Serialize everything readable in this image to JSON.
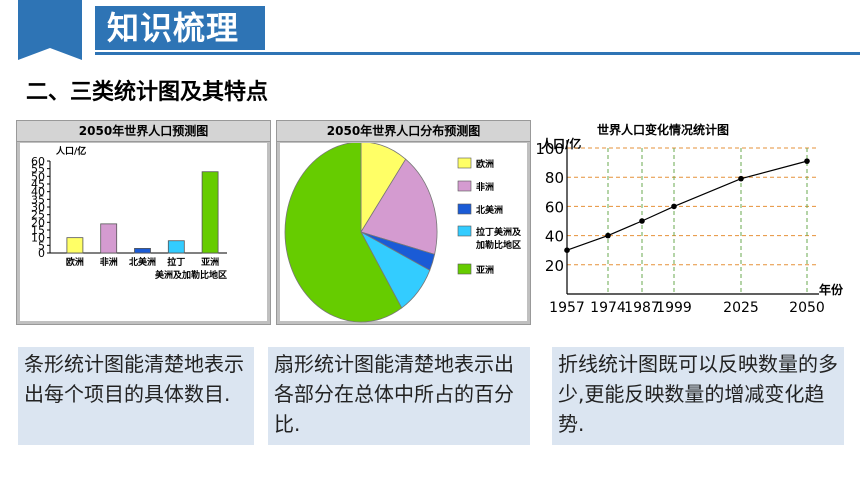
{
  "header": {
    "title": "知识梳理"
  },
  "section_heading": "二、三类统计图及其特点",
  "colors": {
    "accent": "#2e74b5",
    "caption_bg": "#dbe5f1"
  },
  "charts": {
    "bar": {
      "title": "2050年世界人口预测图",
      "unit_label": "人口/亿",
      "x_note": "美洲及加勒比地区"
    },
    "pie": {
      "title": "2050年世界人口分布预测图"
    },
    "line": {
      "title": "世界人口变化情况统计图",
      "unit_label": "人口/亿",
      "x_unit": "年份"
    }
  },
  "chart_data": [
    {
      "type": "bar",
      "title": "2050年世界人口预测图",
      "ylabel": "人口/亿",
      "ylim": [
        0,
        60
      ],
      "yticks": [
        0,
        5,
        10,
        15,
        20,
        25,
        30,
        35,
        40,
        45,
        50,
        55,
        60
      ],
      "categories": [
        "欧洲",
        "非洲",
        "北美洲",
        "拉丁",
        "亚洲"
      ],
      "values": [
        10,
        19,
        3,
        8,
        53
      ],
      "colors": [
        "#ffff66",
        "#d49bd0",
        "#1a5bd6",
        "#33ccff",
        "#66cc00"
      ]
    },
    {
      "type": "pie",
      "title": "2050年世界人口分布预测图",
      "labels": [
        "欧洲",
        "非洲",
        "北美洲",
        "拉丁美洲及加勒比地区",
        "亚洲"
      ],
      "values": [
        10,
        19,
        3,
        9,
        59
      ],
      "colors": [
        "#ffff66",
        "#d49bd0",
        "#1a5bd6",
        "#33ccff",
        "#66cc00"
      ]
    },
    {
      "type": "line",
      "title": "世界人口变化情况统计图",
      "ylabel": "人口/亿",
      "xlabel": "年份",
      "yticks": [
        20,
        40,
        60,
        80,
        100
      ],
      "ylim": [
        0,
        100
      ],
      "x": [
        1957,
        1974,
        1987,
        1999,
        2025,
        2050
      ],
      "x_tick_labels": [
        "1957",
        "1974",
        "1987",
        "1999",
        "2025",
        "2050"
      ],
      "values": [
        30,
        40,
        50,
        60,
        79,
        91
      ]
    }
  ],
  "captions": [
    "条形统计图能清楚地表示出每个项目的具体数目.",
    "扇形统计图能清楚地表示出各部分在总体中所占的百分比.",
    "折线统计图既可以反映数量的多少,更能反映数量的增减变化趋势."
  ]
}
